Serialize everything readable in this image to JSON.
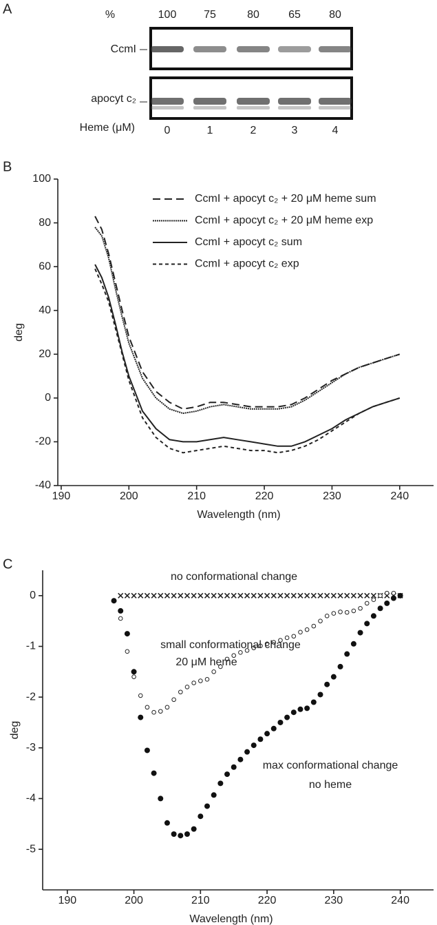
{
  "chart_data": [
    {
      "type": "gel",
      "panel": "A",
      "value_label": "%",
      "values": [
        100,
        75,
        80,
        65,
        80
      ],
      "lanes": [
        "CcmI",
        "apocyt c₂"
      ],
      "x_label": "Heme (μM)",
      "x": [
        0,
        1,
        2,
        3,
        4
      ]
    },
    {
      "type": "line",
      "panel": "B",
      "y_label": "deg",
      "x_label": "Wavelength (nm)",
      "xlim": [
        189.5,
        245
      ],
      "xticks": [
        190,
        200,
        210,
        220,
        230,
        240
      ],
      "ylim": [
        -40,
        100
      ],
      "yticks": [
        -40,
        -20,
        0,
        20,
        40,
        60,
        80,
        100
      ],
      "x": [
        195,
        196,
        197,
        198,
        199,
        200,
        202,
        204,
        206,
        208,
        210,
        212,
        214,
        216,
        218,
        220,
        222,
        224,
        226,
        228,
        230,
        232,
        234,
        236,
        238,
        240
      ],
      "series": [
        {
          "name": "CcmI + apocyt c₂ + 20 μM heme sum",
          "color": "#222",
          "dash": "11,6",
          "values": [
            83,
            77,
            66,
            53,
            40,
            28,
            12,
            3,
            -2,
            -5,
            -4,
            -2,
            -2,
            -3,
            -4,
            -4,
            -4,
            -3,
            0,
            4,
            8,
            11,
            14,
            16,
            18,
            20
          ]
        },
        {
          "name": "CcmI + apocyt c₂ + 20 μM heme exp",
          "color": "#222",
          "dash": "2,1",
          "values": [
            78,
            74,
            64,
            50,
            37,
            25,
            9,
            0,
            -5,
            -7,
            -6,
            -4,
            -3,
            -4,
            -5,
            -5,
            -5,
            -4,
            -1,
            3,
            7,
            11,
            14,
            16,
            18,
            20
          ]
        },
        {
          "name": "CcmI + apocyt c₂ sum",
          "color": "#222",
          "dash": "none",
          "values": [
            61,
            55,
            46,
            34,
            21,
            10,
            -6,
            -14,
            -19,
            -20,
            -20,
            -19,
            -18,
            -19,
            -20,
            -21,
            -22,
            -22,
            -20,
            -17,
            -14,
            -10,
            -7,
            -4,
            -2,
            0
          ]
        },
        {
          "name": "CcmI + apocyt c₂  exp",
          "color": "#222",
          "dash": "5,4",
          "values": [
            59,
            52,
            44,
            32,
            20,
            8,
            -9,
            -18,
            -23,
            -25,
            -24,
            -23,
            -22,
            -23,
            -24,
            -24,
            -25,
            -24,
            -22,
            -19,
            -15,
            -11,
            -7,
            -4,
            -2,
            0
          ]
        }
      ]
    },
    {
      "type": "scatter",
      "panel": "C",
      "y_label": "deg",
      "x_label": "Wavelength (nm)",
      "xlim": [
        186.3,
        245
      ],
      "xticks": [
        190,
        200,
        210,
        220,
        230,
        240
      ],
      "ylim": [
        -5.8,
        0.5
      ],
      "yticks": [
        -5,
        -4,
        -3,
        -2,
        -1,
        0
      ],
      "annotations": [
        "no conformational change",
        "small conformational change",
        "20 μM heme",
        "max conformational change",
        "no heme"
      ],
      "series": [
        {
          "marker": "x",
          "color": "#222",
          "x": [
            198,
            199,
            200,
            201,
            202,
            203,
            204,
            205,
            206,
            207,
            208,
            209,
            210,
            211,
            212,
            213,
            214,
            215,
            216,
            217,
            218,
            219,
            220,
            221,
            222,
            223,
            224,
            225,
            226,
            227,
            228,
            229,
            230,
            231,
            232,
            233,
            234,
            235,
            236,
            237,
            238,
            239,
            240
          ],
          "values": [
            0,
            0,
            0,
            0,
            0,
            0,
            0,
            0,
            0,
            0,
            0,
            0,
            0,
            0,
            0,
            0,
            0,
            0,
            0,
            0,
            0,
            0,
            0,
            0,
            0,
            0,
            0,
            0,
            0,
            0,
            0,
            0,
            0,
            0,
            0,
            0,
            0,
            0,
            0,
            0,
            0,
            0,
            0
          ]
        },
        {
          "marker": "open",
          "color": "#222",
          "x": [
            198,
            199,
            200,
            201,
            202,
            203,
            204,
            205,
            206,
            207,
            208,
            209,
            210,
            211,
            212,
            213,
            214,
            215,
            216,
            217,
            218,
            219,
            220,
            221,
            222,
            223,
            224,
            225,
            226,
            227,
            228,
            229,
            230,
            231,
            232,
            233,
            234,
            235,
            236,
            237,
            238,
            239,
            240
          ],
          "values": [
            -0.45,
            -1.1,
            -1.6,
            -1.97,
            -2.2,
            -2.3,
            -2.28,
            -2.2,
            -2.05,
            -1.9,
            -1.8,
            -1.72,
            -1.68,
            -1.65,
            -1.5,
            -1.4,
            -1.25,
            -1.18,
            -1.12,
            -1.08,
            -1.03,
            -0.99,
            -0.95,
            -0.92,
            -0.88,
            -0.83,
            -0.8,
            -0.72,
            -0.67,
            -0.6,
            -0.5,
            -0.4,
            -0.35,
            -0.32,
            -0.33,
            -0.3,
            -0.25,
            -0.15,
            -0.08,
            0,
            0.05,
            0.05,
            0
          ]
        },
        {
          "marker": "filled",
          "color": "#111",
          "x": [
            197,
            198,
            199,
            200,
            201,
            202,
            203,
            204,
            205,
            206,
            207,
            208,
            209,
            210,
            211,
            212,
            213,
            214,
            215,
            216,
            217,
            218,
            219,
            220,
            221,
            222,
            223,
            224,
            225,
            226,
            227,
            228,
            229,
            230,
            231,
            232,
            233,
            234,
            235,
            236,
            237,
            238,
            239,
            240
          ],
          "values": [
            -0.1,
            -0.3,
            -0.75,
            -1.5,
            -2.4,
            -3.05,
            -3.5,
            -4.0,
            -4.48,
            -4.7,
            -4.73,
            -4.7,
            -4.6,
            -4.35,
            -4.15,
            -3.93,
            -3.7,
            -3.52,
            -3.38,
            -3.23,
            -3.08,
            -2.95,
            -2.83,
            -2.72,
            -2.62,
            -2.5,
            -2.4,
            -2.3,
            -2.24,
            -2.22,
            -2.1,
            -1.95,
            -1.75,
            -1.6,
            -1.4,
            -1.15,
            -0.95,
            -0.73,
            -0.55,
            -0.4,
            -0.25,
            -0.15,
            -0.05,
            0
          ]
        }
      ]
    }
  ]
}
